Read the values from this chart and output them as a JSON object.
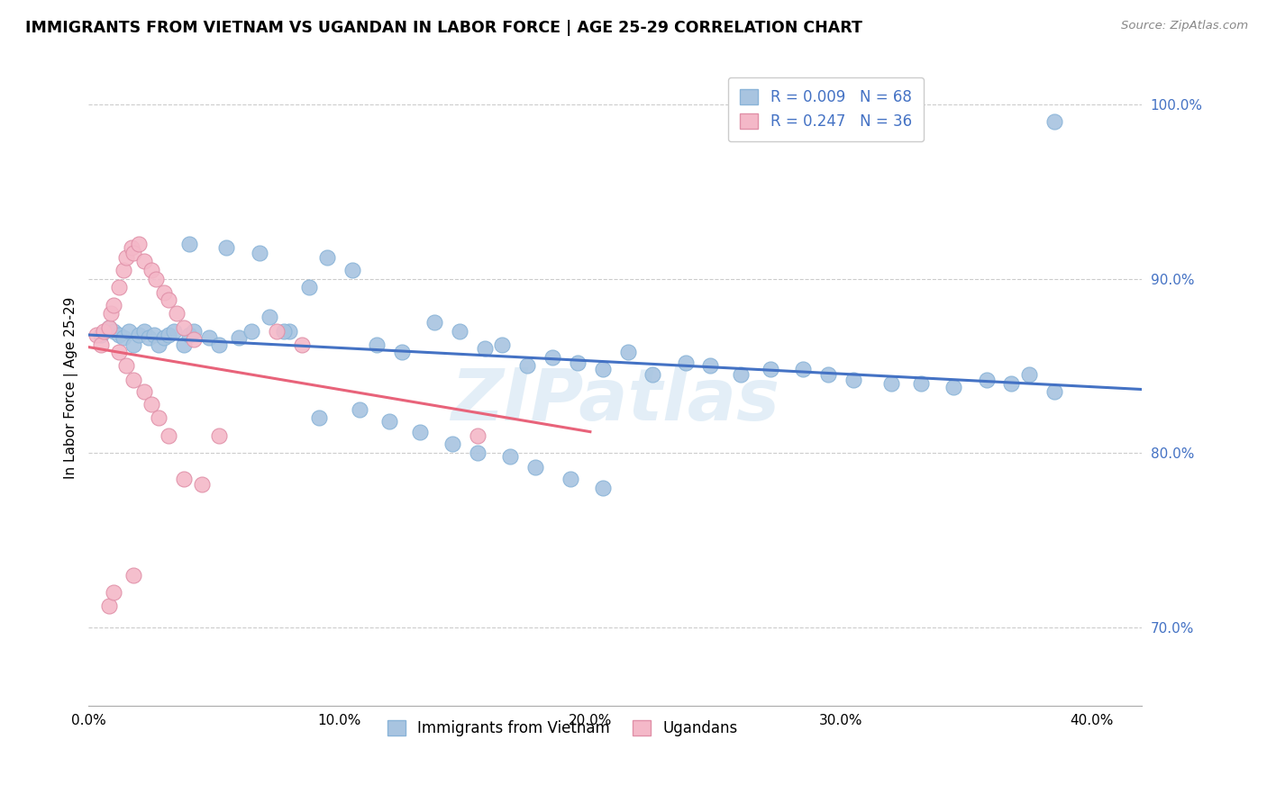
{
  "title": "IMMIGRANTS FROM VIETNAM VS UGANDAN IN LABOR FORCE | AGE 25-29 CORRELATION CHART",
  "source": "Source: ZipAtlas.com",
  "ylabel": "In Labor Force | Age 25-29",
  "legend_label_blue": "Immigrants from Vietnam",
  "legend_label_pink": "Ugandans",
  "r_blue": 0.009,
  "n_blue": 68,
  "r_pink": 0.247,
  "n_pink": 36,
  "xmin": 0.0,
  "xmax": 0.42,
  "ymin": 0.655,
  "ymax": 1.02,
  "yticks": [
    0.7,
    0.8,
    0.9,
    1.0
  ],
  "ytick_labels": [
    "70.0%",
    "80.0%",
    "90.0%",
    "100.0%"
  ],
  "xticks": [
    0.0,
    0.1,
    0.2,
    0.3,
    0.4
  ],
  "xtick_labels": [
    "0.0%",
    "10.0%",
    "20.0%",
    "30.0%",
    "40.0%"
  ],
  "color_blue": "#a8c4e0",
  "color_pink": "#f4b8c8",
  "trendline_blue": "#4472c4",
  "trendline_pink": "#e8637a",
  "watermark": "ZIPatlas",
  "blue_x": [
    0.005,
    0.008,
    0.01,
    0.012,
    0.014,
    0.016,
    0.018,
    0.02,
    0.022,
    0.024,
    0.026,
    0.028,
    0.03,
    0.032,
    0.034,
    0.038,
    0.04,
    0.042,
    0.048,
    0.052,
    0.06,
    0.065,
    0.072,
    0.08,
    0.088,
    0.095,
    0.105,
    0.115,
    0.125,
    0.138,
    0.148,
    0.158,
    0.165,
    0.175,
    0.185,
    0.195,
    0.205,
    0.215,
    0.225,
    0.238,
    0.248,
    0.26,
    0.272,
    0.285,
    0.295,
    0.305,
    0.32,
    0.332,
    0.345,
    0.358,
    0.368,
    0.375,
    0.385,
    0.04,
    0.055,
    0.068,
    0.078,
    0.092,
    0.108,
    0.12,
    0.132,
    0.145,
    0.155,
    0.168,
    0.178,
    0.192,
    0.205,
    0.385
  ],
  "blue_y": [
    0.868,
    0.872,
    0.87,
    0.868,
    0.866,
    0.87,
    0.862,
    0.868,
    0.87,
    0.866,
    0.868,
    0.862,
    0.866,
    0.868,
    0.87,
    0.862,
    0.868,
    0.87,
    0.866,
    0.862,
    0.866,
    0.87,
    0.878,
    0.87,
    0.895,
    0.912,
    0.905,
    0.862,
    0.858,
    0.875,
    0.87,
    0.86,
    0.862,
    0.85,
    0.855,
    0.852,
    0.848,
    0.858,
    0.845,
    0.852,
    0.85,
    0.845,
    0.848,
    0.848,
    0.845,
    0.842,
    0.84,
    0.84,
    0.838,
    0.842,
    0.84,
    0.845,
    0.835,
    0.92,
    0.918,
    0.915,
    0.87,
    0.82,
    0.825,
    0.818,
    0.812,
    0.805,
    0.8,
    0.798,
    0.792,
    0.785,
    0.78,
    0.99
  ],
  "pink_x": [
    0.003,
    0.005,
    0.006,
    0.008,
    0.009,
    0.01,
    0.012,
    0.014,
    0.015,
    0.017,
    0.018,
    0.02,
    0.022,
    0.025,
    0.027,
    0.03,
    0.032,
    0.035,
    0.038,
    0.042,
    0.012,
    0.015,
    0.018,
    0.022,
    0.025,
    0.028,
    0.032,
    0.038,
    0.045,
    0.052,
    0.008,
    0.01,
    0.018,
    0.075,
    0.085,
    0.155
  ],
  "pink_y": [
    0.868,
    0.862,
    0.87,
    0.872,
    0.88,
    0.885,
    0.895,
    0.905,
    0.912,
    0.918,
    0.915,
    0.92,
    0.91,
    0.905,
    0.9,
    0.892,
    0.888,
    0.88,
    0.872,
    0.865,
    0.858,
    0.85,
    0.842,
    0.835,
    0.828,
    0.82,
    0.81,
    0.785,
    0.782,
    0.81,
    0.712,
    0.72,
    0.73,
    0.87,
    0.862,
    0.81
  ]
}
